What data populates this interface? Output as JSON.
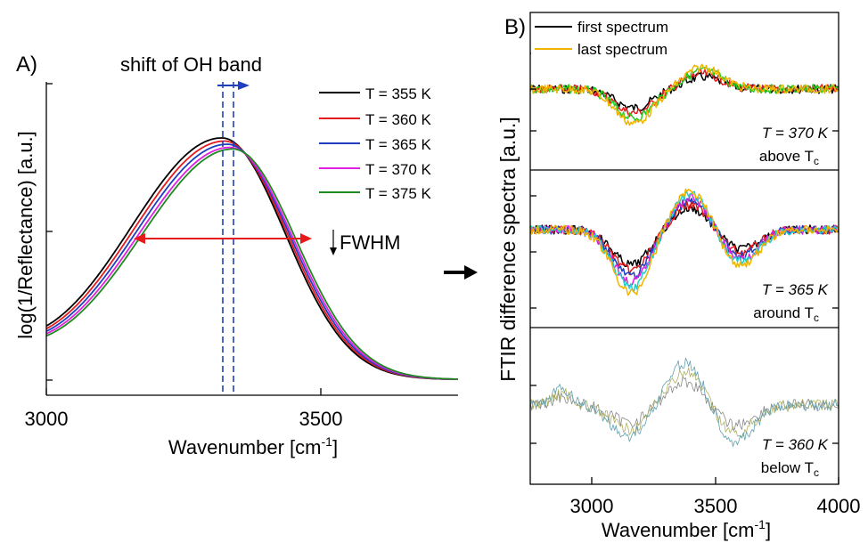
{
  "panel_a": {
    "letter": "A)",
    "title": "shift of OH band",
    "fwhm_label": "FWHM",
    "xlabel": "Wavenumber [cm",
    "xlabel_sup": "-1",
    "xlabel_end": "]",
    "ylabel": "log(1/Reflectance) [a.u.]"
  },
  "panel_b": {
    "letter": "B)",
    "xlabel": "Wavenumber [cm",
    "xlabel_sup": "-1",
    "xlabel_end": "]",
    "ylabel": "FTIR difference spectra [a.u.]",
    "legend": {
      "first": "first spectrum",
      "last": "last spectrum"
    },
    "sub1": {
      "temp": "T = 370 K",
      "region": "above T",
      "region_sub": "c"
    },
    "sub2": {
      "temp": "T = 365 K",
      "region": "around T",
      "region_sub": "c"
    },
    "sub3": {
      "temp": "T = 360 K",
      "region": "below T",
      "region_sub": "c"
    }
  },
  "chart_data": [
    {
      "type": "line",
      "panel": "A",
      "title": "shift of OH band",
      "xlabel": "Wavenumber [cm-1]",
      "ylabel": "log(1/Reflectance) [a.u.]",
      "xlim": [
        3000,
        3750
      ],
      "ylim": [
        0,
        1
      ],
      "xticks": [
        3000,
        3500
      ],
      "peak_center_range": [
        3320,
        3345
      ],
      "fwhm_range": [
        3165,
        3480
      ],
      "series": [
        {
          "name": "T = 355 K",
          "color": "#000000",
          "peak_x": 3320,
          "peak_y": 0.82
        },
        {
          "name": "T = 360 K",
          "color": "#e41a1c",
          "peak_x": 3325,
          "peak_y": 0.81
        },
        {
          "name": "T = 365 K",
          "color": "#1f3fbf",
          "peak_x": 3330,
          "peak_y": 0.8
        },
        {
          "name": "T = 370 K",
          "color": "#e11fe1",
          "peak_x": 3335,
          "peak_y": 0.79
        },
        {
          "name": "T = 375 K",
          "color": "#1f8a1f",
          "peak_x": 3340,
          "peak_y": 0.785
        }
      ]
    },
    {
      "type": "line",
      "panel": "B",
      "xlabel": "Wavenumber [cm-1]",
      "ylabel": "FTIR difference spectra [a.u.]",
      "xlim": [
        2750,
        4000
      ],
      "xticks": [
        3000,
        3500,
        4000
      ],
      "subplots": [
        {
          "temperature": "T = 370 K",
          "region": "above Tc",
          "features": [
            {
              "x": 3170,
              "depth": -0.55
            },
            {
              "x": 3450,
              "depth": 0.35
            }
          ],
          "series_colors": [
            "#000000",
            "#e41a1c",
            "#22cc22",
            "#f0b400"
          ]
        },
        {
          "temperature": "T = 365 K",
          "region": "around Tc",
          "features": [
            {
              "x": 3160,
              "depth": -0.8
            },
            {
              "x": 3400,
              "depth": 0.5
            },
            {
              "x": 3600,
              "depth": -0.45
            }
          ],
          "series_colors": [
            "#000000",
            "#e41a1c",
            "#1f3fbf",
            "#e11fe1",
            "#22cccc",
            "#f0b400"
          ]
        },
        {
          "temperature": "T = 360 K",
          "region": "below Tc",
          "features": [
            {
              "x": 3150,
              "depth": -0.5
            },
            {
              "x": 3380,
              "depth": 0.7
            },
            {
              "x": 3580,
              "depth": -0.6
            }
          ],
          "series_colors": [
            "#888888",
            "#b0b060",
            "#60a0b0"
          ]
        }
      ],
      "legend": [
        {
          "name": "first spectrum",
          "color": "#000000"
        },
        {
          "name": "last spectrum",
          "color": "#f0b400"
        }
      ]
    }
  ]
}
